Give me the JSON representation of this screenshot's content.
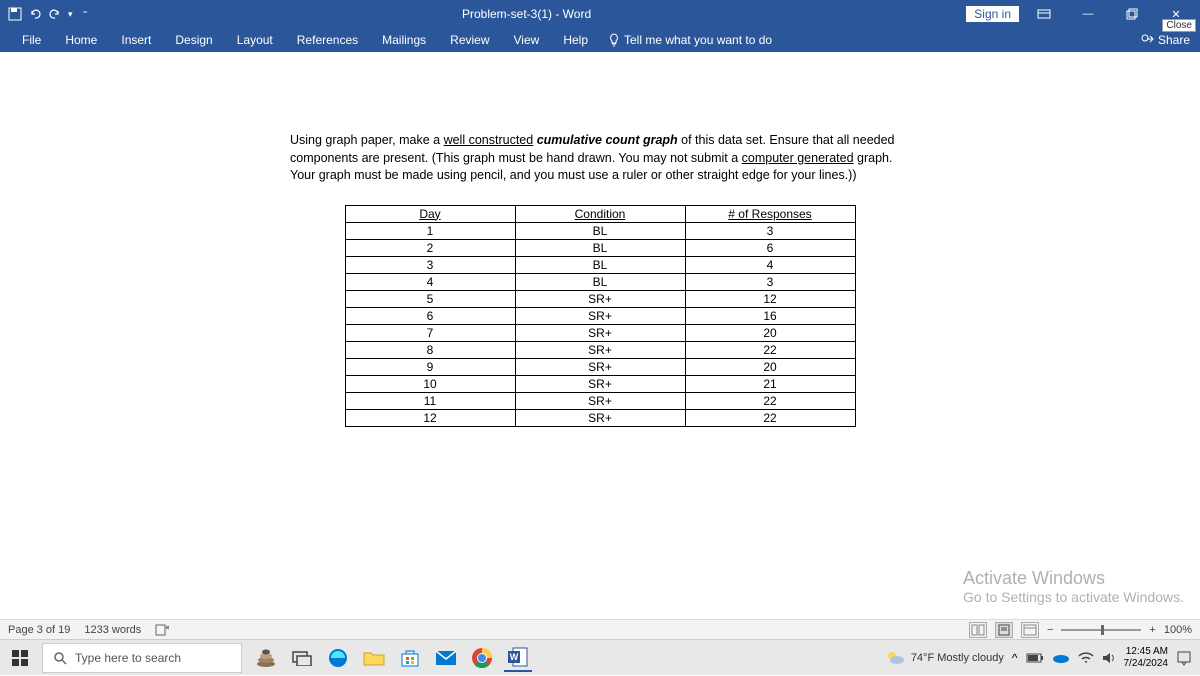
{
  "titlebar": {
    "title": "Problem-set-3(1)  -  Word",
    "signin": "Sign in",
    "close_tooltip": "Close"
  },
  "ribbon": {
    "tabs": [
      "File",
      "Home",
      "Insert",
      "Design",
      "Layout",
      "References",
      "Mailings",
      "Review",
      "View",
      "Help"
    ],
    "tellme": "Tell me what you want to do",
    "share": "Share"
  },
  "document": {
    "instruction_parts": {
      "p1": "Using graph paper, make a ",
      "p2_underline": "well constructed",
      "p3": " ",
      "p4_italic": "cumulative count graph",
      "p5": " of this data set.  Ensure that all needed components are present.  (This graph must be hand drawn.  You may not submit a ",
      "p6_underline": "computer generated",
      "p7": " graph.  Your graph must be made using pencil, and you must use a ruler or other straight edge for your lines.))"
    },
    "table": {
      "headers": [
        "Day",
        "Condition",
        "# of Responses"
      ],
      "rows": [
        [
          "1",
          "BL",
          "3"
        ],
        [
          "2",
          "BL",
          "6"
        ],
        [
          "3",
          "BL",
          "4"
        ],
        [
          "4",
          "BL",
          "3"
        ],
        [
          "5",
          "SR+",
          "12"
        ],
        [
          "6",
          "SR+",
          "16"
        ],
        [
          "7",
          "SR+",
          "20"
        ],
        [
          "8",
          "SR+",
          "22"
        ],
        [
          "9",
          "SR+",
          "20"
        ],
        [
          "10",
          "SR+",
          "21"
        ],
        [
          "11",
          "SR+",
          "22"
        ],
        [
          "12",
          "SR+",
          "22"
        ]
      ]
    }
  },
  "activate": {
    "title": "Activate Windows",
    "sub": "Go to Settings to activate Windows."
  },
  "statusbar": {
    "page": "Page 3 of 19",
    "words": "1233 words",
    "zoom": "100%"
  },
  "taskbar": {
    "search_placeholder": "Type here to search",
    "weather": "74°F  Mostly cloudy",
    "time": "12:45 AM",
    "date": "7/24/2024"
  }
}
